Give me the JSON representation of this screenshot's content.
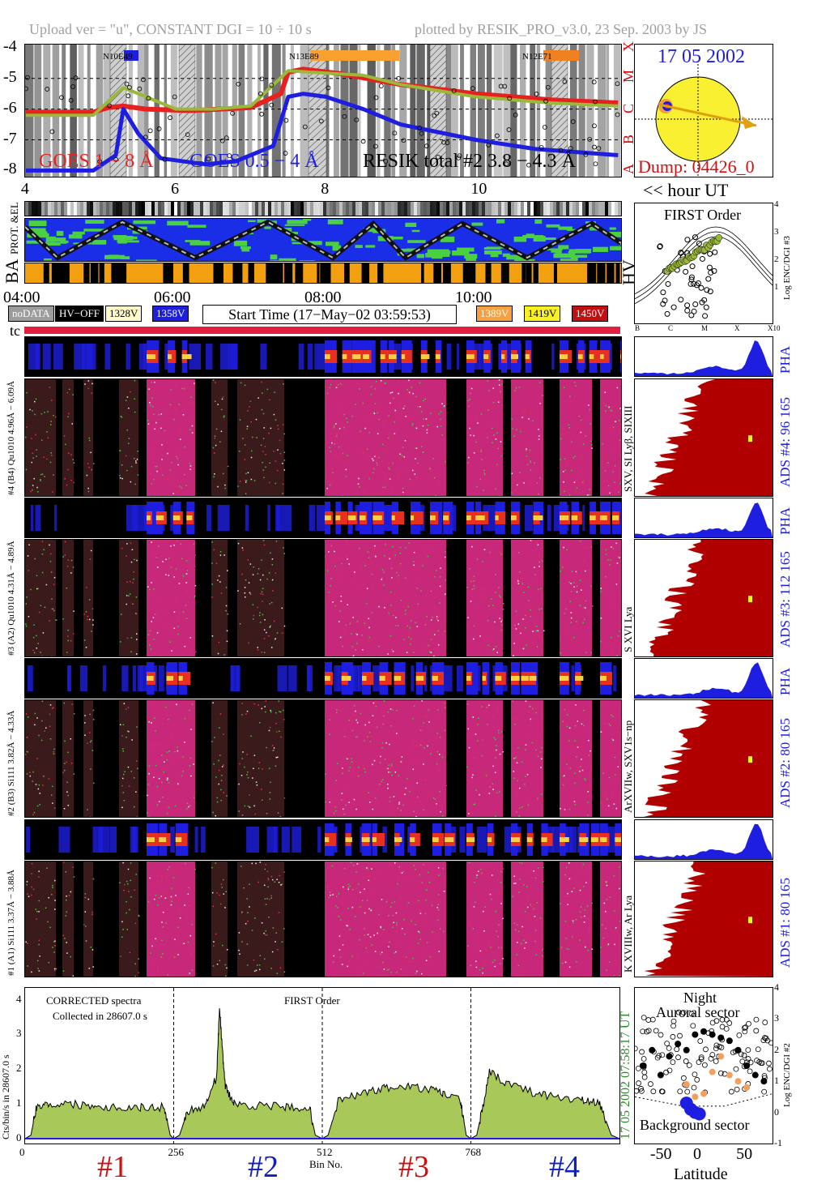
{
  "header": {
    "left": "Upload ver = \"u\", CONSTANT  DGI =  10 ÷  10 s",
    "right": "plotted by RESIK_PRO_v3.0, 23 Sep. 2003 by JS"
  },
  "goes": {
    "yticks": [
      "-4",
      "-5",
      "-6",
      "-7",
      "-8"
    ],
    "classes": [
      "X",
      "M",
      "C",
      "B",
      "A"
    ],
    "xticks": [
      "4",
      "6",
      "8",
      "10"
    ],
    "regions": [
      "N10E49",
      "N13E89",
      "N12E71"
    ],
    "legend_goes18": "GOES 1 − 8 Å",
    "legend_goes054": "GOES 0.5 − 4 Å",
    "legend_resik": "RESIK total #2  3.8 − 4.3 Å",
    "hour_label": "<< hour UT",
    "colors": {
      "goes18": "#e82020",
      "goes054": "#1e1ee0",
      "resik": "#9ab83a"
    }
  },
  "sun": {
    "date": "17 05 2002",
    "dump": "Dump: 04426_0"
  },
  "status": {
    "prot_label": "PROT. &EL",
    "ba_label": "BA",
    "hv_label": "HV",
    "time_ticks": [
      "04:00",
      "06:00",
      "08:00",
      "10:00"
    ],
    "legend": {
      "nodata": "noDATA",
      "hvoff": "HV−OFF",
      "v1328": "1328V",
      "v1358": "1358V",
      "start": "Start Time (17−May−02 03:59:53)",
      "v1389": "1389V",
      "v1419": "1419V",
      "v1450": "1450V"
    },
    "tc": "tc"
  },
  "first_order": {
    "title": "FIRST Order",
    "ylabel": "Log ENC/DGI #3",
    "yticks": [
      "4",
      "3",
      "2",
      "1"
    ],
    "xticks": [
      "B",
      "C",
      "M",
      "X",
      "X10"
    ]
  },
  "channels": [
    {
      "pha_label": "#4 (B4) Qu1010 4.96Å − 6.09Å",
      "spec_label": "SXV, SI Lyβ, SIXIII",
      "ads": "ADS #4:   96 165",
      "pha": "PHA"
    },
    {
      "pha_label": "#3 (A2) Qu1010 4.31Å − 4.89Å",
      "spec_label": "S XVI Lya",
      "ads": "ADS #3:  112 165",
      "pha": "PHA"
    },
    {
      "pha_label": "#2 (B3) Si111 3.82Å − 4.33Å",
      "spec_label": "ArXVIIw, SXV1s−np",
      "ads": "ADS #2:   80 165",
      "pha": "PHA"
    },
    {
      "pha_label": "#1 (A1) Si111 3.37Å − 3.88Å",
      "spec_label": "K XVIIIw, Ar Lya",
      "ads": "ADS #1:   80 165",
      "pha": ""
    }
  ],
  "spectrum": {
    "ylabel": "Cts/bin/s in 28607.0 s",
    "note1": "CORRECTED spectra",
    "note2": "Collected in 28607.0 s",
    "note3": "FIRST Order",
    "side_label": "17 05 2002   07:58:17 UT",
    "xlabel": "Bin No.",
    "xticks": [
      "0",
      "256",
      "512",
      "768"
    ],
    "yticks": [
      "4",
      "3",
      "2",
      "1",
      "0"
    ],
    "channels": [
      "#1",
      "#2",
      "#3",
      "#4"
    ],
    "channel_colors": [
      "#d01010",
      "#1020c0",
      "#d01010",
      "#1020c0"
    ]
  },
  "latitude": {
    "title1": "Night",
    "title2": "Auroral sector",
    "bottom": "Background sector",
    "xlabel": "Latitude",
    "xticks": [
      "-50",
      "0",
      "50"
    ],
    "yticks": [
      "4",
      "3",
      "2",
      "1",
      "0",
      "-1"
    ],
    "ylabel": "Log ENC/DGI #2"
  },
  "chart_data": [
    {
      "type": "line",
      "title": "",
      "xlabel": "hour UT",
      "ylabel": "",
      "xlim": [
        3.99,
        11.94
      ],
      "ylim": [
        -8.2,
        -3.9
      ],
      "series": [
        {
          "name": "GOES 1 − 8 Å",
          "x": [
            4.0,
            4.9,
            5.1,
            5.3,
            5.6,
            6.2,
            6.6,
            7.0,
            7.4,
            7.5,
            7.7,
            8.2,
            9.0,
            10.0,
            11.0,
            11.9
          ],
          "y": [
            -6.1,
            -6.1,
            -5.95,
            -5.9,
            -6.0,
            -6.05,
            -6.0,
            -5.95,
            -5.5,
            -4.8,
            -4.7,
            -4.85,
            -5.2,
            -5.5,
            -5.7,
            -5.8
          ]
        },
        {
          "name": "GOES 0.5 − 4 Å",
          "x": [
            4.0,
            4.9,
            5.2,
            5.3,
            5.5,
            5.8,
            6.4,
            6.8,
            7.3,
            7.5,
            7.7,
            8.0,
            8.5,
            9.0,
            10.0,
            10.8,
            11.9
          ],
          "y": [
            -8.0,
            -8.0,
            -7.5,
            -6.0,
            -6.8,
            -7.6,
            -7.8,
            -7.7,
            -7.2,
            -5.6,
            -5.5,
            -5.6,
            -6.0,
            -6.5,
            -7.0,
            -7.3,
            -7.5
          ]
        },
        {
          "name": "RESIK total #2  3.8 − 4.3 Å",
          "x": [
            4.0,
            4.9,
            5.3,
            5.6,
            6.0,
            6.5,
            7.0,
            7.5,
            7.8,
            8.5,
            9.0,
            10.0,
            11.0,
            11.9
          ],
          "y": [
            -6.2,
            -6.2,
            -5.3,
            -5.6,
            -6.0,
            -6.0,
            -5.9,
            -4.75,
            -4.8,
            -4.9,
            -5.2,
            -5.6,
            -5.8,
            -5.9
          ]
        }
      ]
    },
    {
      "type": "area",
      "title": "",
      "xlabel": "Bin No.",
      "ylabel": "Cts/bin/s in 28607.0 s",
      "xlim": [
        0,
        1024
      ],
      "ylim": [
        0,
        4.2
      ],
      "series": [
        {
          "name": "#1",
          "x": [
            0,
            10,
            20,
            40,
            80,
            120,
            160,
            200,
            240,
            250,
            256
          ],
          "y": [
            0,
            0.1,
            0.95,
            1.0,
            1.0,
            0.95,
            0.9,
            0.9,
            0.9,
            0.1,
            0
          ]
        },
        {
          "name": "#2",
          "x": [
            256,
            266,
            280,
            310,
            330,
            335,
            340,
            345,
            360,
            400,
            450,
            490,
            500,
            512
          ],
          "y": [
            0,
            0.1,
            0.8,
            0.95,
            1.8,
            3.8,
            2.5,
            1.5,
            1.0,
            0.95,
            0.9,
            0.9,
            0.1,
            0
          ]
        },
        {
          "name": "#3",
          "x": [
            512,
            522,
            540,
            580,
            620,
            660,
            700,
            720,
            750,
            760,
            768
          ],
          "y": [
            0,
            0.1,
            1.1,
            1.3,
            1.45,
            1.5,
            1.4,
            1.3,
            1.1,
            0.1,
            0
          ]
        },
        {
          "name": "#4",
          "x": [
            768,
            778,
            790,
            800,
            830,
            880,
            920,
            960,
            990,
            1010,
            1024
          ],
          "y": [
            0,
            0.1,
            1.0,
            1.9,
            1.6,
            1.3,
            1.2,
            1.1,
            1.0,
            0.1,
            0
          ]
        }
      ]
    },
    {
      "type": "scatter",
      "title": "",
      "xlabel": "Latitude",
      "ylabel": "Log ENC/DGI #2",
      "xlim": [
        -80,
        80
      ],
      "ylim": [
        -1,
        4
      ],
      "series": [
        {
          "name": "",
          "x": [
            -70,
            -60,
            -50,
            -40,
            -30,
            -20,
            -10,
            0,
            10,
            20,
            30,
            40,
            50,
            60,
            70
          ],
          "y": [
            1.5,
            2.0,
            1.2,
            1.8,
            2.2,
            2.0,
            2.5,
            2.6,
            2.5,
            2.4,
            2.3,
            2.0,
            1.5,
            1.2,
            1.0
          ]
        },
        {
          "name": "",
          "x": [
            -20,
            -10,
            0,
            10,
            20,
            30,
            40,
            50
          ],
          "y": [
            0.9,
            0.5,
            0.6,
            1.3,
            1.8,
            1.2,
            1.0,
            0.8
          ]
        },
        {
          "name": "",
          "x": [
            -20,
            -15,
            -10,
            -5
          ],
          "y": [
            0.3,
            0.1,
            0.0,
            -0.05
          ]
        }
      ]
    }
  ]
}
